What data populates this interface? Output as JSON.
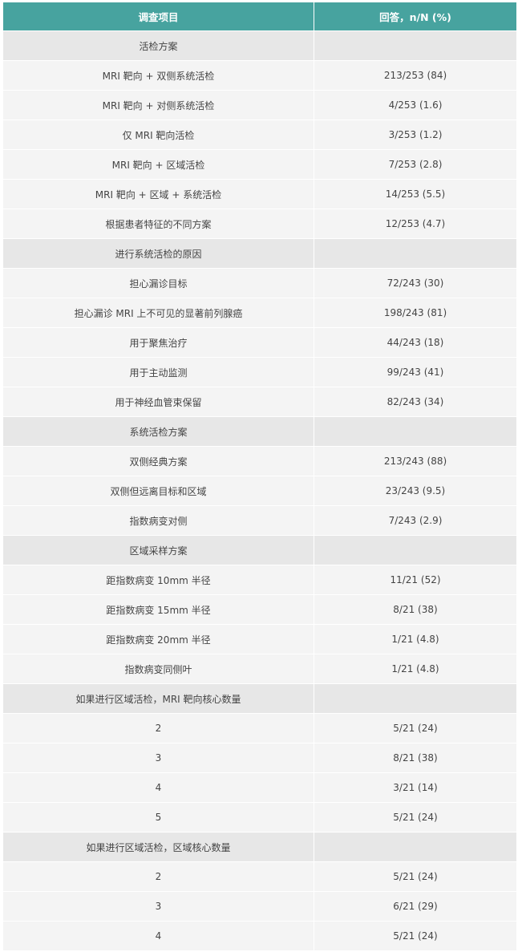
{
  "table": {
    "headers": [
      "调查项目",
      "回答，n/N (%)"
    ],
    "colors": {
      "header": "#47a39f",
      "section_row": "#e7e7e7",
      "data_row": "#f4f4f4"
    },
    "rows": [
      {
        "type": "section",
        "label": "活检方案",
        "value": ""
      },
      {
        "type": "item",
        "label": "MRI 靶向 + 双侧系统活检",
        "value": "213/253 (84)"
      },
      {
        "type": "item",
        "label": "MRI 靶向 + 对侧系统活检",
        "value": "4/253 (1.6)"
      },
      {
        "type": "item",
        "label": "仅 MRI 靶向活检",
        "value": "3/253 (1.2)"
      },
      {
        "type": "item",
        "label": "MRI 靶向 + 区域活检",
        "value": "7/253 (2.8)"
      },
      {
        "type": "item",
        "label": "MRI 靶向 + 区域 + 系统活检",
        "value": "14/253 (5.5)"
      },
      {
        "type": "item",
        "label": "根据患者特征的不同方案",
        "value": "12/253 (4.7)"
      },
      {
        "type": "section",
        "label": "进行系统活检的原因",
        "value": ""
      },
      {
        "type": "item",
        "label": "担心漏诊目标",
        "value": "72/243 (30)"
      },
      {
        "type": "item",
        "label": "担心漏诊 MRI 上不可见的显著前列腺癌",
        "value": "198/243 (81)"
      },
      {
        "type": "item",
        "label": "用于聚焦治疗",
        "value": "44/243 (18)"
      },
      {
        "type": "item",
        "label": "用于主动监测",
        "value": "99/243 (41)"
      },
      {
        "type": "item",
        "label": "用于神经血管束保留",
        "value": "82/243 (34)"
      },
      {
        "type": "section",
        "label": "系统活检方案",
        "value": ""
      },
      {
        "type": "item",
        "label": "双侧经典方案",
        "value": "213/243 (88)"
      },
      {
        "type": "item",
        "label": "双侧但远离目标和区域",
        "value": "23/243 (9.5)"
      },
      {
        "type": "item",
        "label": "指数病变对侧",
        "value": "7/243 (2.9)"
      },
      {
        "type": "section",
        "label": "区域采样方案",
        "value": ""
      },
      {
        "type": "item",
        "label": "距指数病变 10mm 半径",
        "value": "11/21 (52)"
      },
      {
        "type": "item",
        "label": "距指数病变 15mm 半径",
        "value": "8/21 (38)"
      },
      {
        "type": "item",
        "label": "距指数病变 20mm 半径",
        "value": "1/21 (4.8)"
      },
      {
        "type": "item",
        "label": "指数病变同侧叶",
        "value": "1/21 (4.8)"
      },
      {
        "type": "section",
        "label": "如果进行区域活检，MRI 靶向核心数量",
        "value": ""
      },
      {
        "type": "item",
        "label": "2",
        "value": "5/21 (24)"
      },
      {
        "type": "item",
        "label": "3",
        "value": "8/21 (38)"
      },
      {
        "type": "item",
        "label": "4",
        "value": "3/21 (14)"
      },
      {
        "type": "item",
        "label": "5",
        "value": "5/21 (24)"
      },
      {
        "type": "section",
        "label": "如果进行区域活检，区域核心数量",
        "value": ""
      },
      {
        "type": "item",
        "label": "2",
        "value": "5/21 (24)"
      },
      {
        "type": "item",
        "label": "3",
        "value": "6/21 (29)"
      },
      {
        "type": "item",
        "label": "4",
        "value": "5/21 (24)"
      }
    ]
  }
}
